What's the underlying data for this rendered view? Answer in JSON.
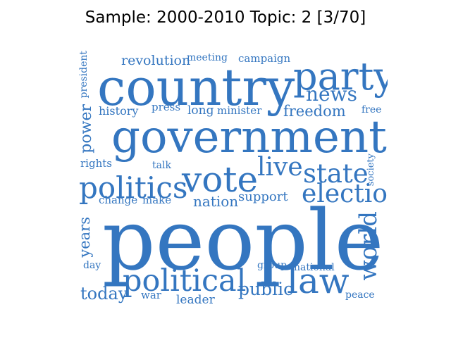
{
  "title": "Sample: 2000-2010 Topic: 2 [3/70]",
  "word_color": "#3476c0",
  "words": [
    {
      "id": "people",
      "text": "people"
    },
    {
      "id": "country",
      "text": "country"
    },
    {
      "id": "government",
      "text": "government"
    },
    {
      "id": "party",
      "text": "party"
    },
    {
      "id": "vote",
      "text": "vote"
    },
    {
      "id": "politics",
      "text": "politics"
    },
    {
      "id": "political",
      "text": "political"
    },
    {
      "id": "law",
      "text": "law"
    },
    {
      "id": "state",
      "text": "state"
    },
    {
      "id": "election",
      "text": "election"
    },
    {
      "id": "live",
      "text": "live"
    },
    {
      "id": "news",
      "text": "news"
    },
    {
      "id": "world",
      "text": "world"
    },
    {
      "id": "freedom",
      "text": "freedom"
    },
    {
      "id": "public",
      "text": "public"
    },
    {
      "id": "today",
      "text": "today"
    },
    {
      "id": "nation",
      "text": "nation"
    },
    {
      "id": "support",
      "text": "support"
    },
    {
      "id": "revolution",
      "text": "revolution"
    },
    {
      "id": "power",
      "text": "power"
    },
    {
      "id": "years",
      "text": "years"
    },
    {
      "id": "long",
      "text": "long"
    },
    {
      "id": "minister",
      "text": "minister"
    },
    {
      "id": "history",
      "text": "history"
    },
    {
      "id": "leader",
      "text": "leader"
    },
    {
      "id": "national",
      "text": "national"
    },
    {
      "id": "campaign",
      "text": "campaign"
    },
    {
      "id": "meeting",
      "text": "meeting"
    },
    {
      "id": "president",
      "text": "president"
    },
    {
      "id": "press",
      "text": "press"
    },
    {
      "id": "rights",
      "text": "rights"
    },
    {
      "id": "talk",
      "text": "talk"
    },
    {
      "id": "change",
      "text": "change"
    },
    {
      "id": "make",
      "text": "make"
    },
    {
      "id": "society",
      "text": "society"
    },
    {
      "id": "group",
      "text": "group"
    },
    {
      "id": "day",
      "text": "day"
    },
    {
      "id": "war",
      "text": "war"
    },
    {
      "id": "peace",
      "text": "peace"
    },
    {
      "id": "free",
      "text": "free"
    }
  ]
}
